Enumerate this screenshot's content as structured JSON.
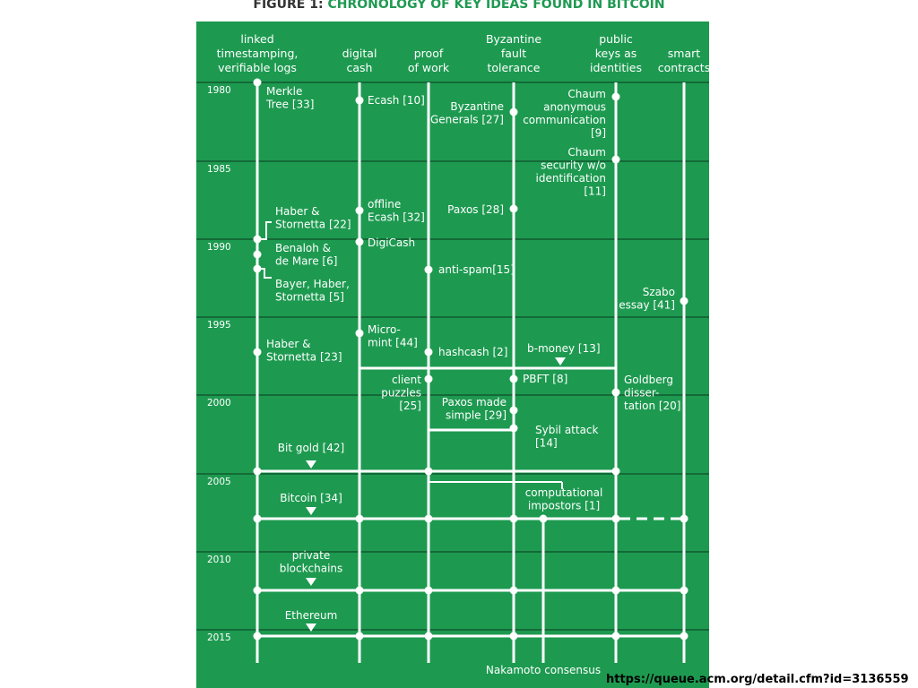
{
  "title": {
    "prefix": "FIGURE 1:",
    "text": "CHRONOLOGY OF KEY IDEAS FOUND IN BITCOIN"
  },
  "colors": {
    "panel": "#1d9a50",
    "line": "#ffffff",
    "title_accent": "#1f9a52"
  },
  "columns": [
    {
      "id": "ts",
      "lines": [
        "linked",
        "timestamping,",
        "verifiable logs"
      ]
    },
    {
      "id": "dc",
      "lines": [
        "digital",
        "cash"
      ]
    },
    {
      "id": "pow",
      "lines": [
        "proof",
        "of work"
      ]
    },
    {
      "id": "bft",
      "lines": [
        "Byzantine",
        "fault",
        "tolerance"
      ]
    },
    {
      "id": "pk",
      "lines": [
        "public",
        "keys as",
        "identities"
      ]
    },
    {
      "id": "sc",
      "lines": [
        "smart",
        "contracts"
      ]
    }
  ],
  "years": [
    "1980",
    "1985",
    "1990",
    "1995",
    "2000",
    "2005",
    "2010",
    "2015"
  ],
  "ideas": [
    {
      "id": "merkle",
      "lines": [
        "Merkle",
        "Tree [33]"
      ]
    },
    {
      "id": "ecash",
      "lines": [
        "Ecash [10]"
      ]
    },
    {
      "id": "byzgen",
      "lines": [
        "Byzantine",
        "Generals [27]"
      ]
    },
    {
      "id": "chaum1",
      "lines": [
        "Chaum",
        "anonymous",
        "communication",
        "[9]"
      ]
    },
    {
      "id": "chaum2",
      "lines": [
        "Chaum",
        "security w/o",
        "identification",
        "[11]"
      ]
    },
    {
      "id": "haber22",
      "lines": [
        "Haber &",
        "Stornetta [22]"
      ]
    },
    {
      "id": "offline",
      "lines": [
        "offline",
        "Ecash [32]"
      ]
    },
    {
      "id": "paxos",
      "lines": [
        "Paxos [28]"
      ]
    },
    {
      "id": "digicash",
      "lines": [
        "DigiCash"
      ]
    },
    {
      "id": "benaloh",
      "lines": [
        "Benaloh &",
        "de Mare [6]"
      ]
    },
    {
      "id": "antispam",
      "lines": [
        "anti-spam[15]"
      ]
    },
    {
      "id": "bayer",
      "lines": [
        "Bayer, Haber,",
        "Stornetta [5]"
      ]
    },
    {
      "id": "szabo",
      "lines": [
        "Szabo",
        "essay [41]"
      ]
    },
    {
      "id": "micromint",
      "lines": [
        "Micro-",
        "mint [44]"
      ]
    },
    {
      "id": "haber23",
      "lines": [
        "Haber &",
        "Stornetta [23]"
      ]
    },
    {
      "id": "hashcash",
      "lines": [
        "hashcash [2]"
      ]
    },
    {
      "id": "bmoney",
      "lines": [
        "b-money [13]"
      ]
    },
    {
      "id": "client",
      "lines": [
        "client",
        "puzzles",
        "[25]"
      ]
    },
    {
      "id": "pbft",
      "lines": [
        "PBFT [8]"
      ]
    },
    {
      "id": "goldberg",
      "lines": [
        "Goldberg",
        "disser-",
        "tation [20]"
      ]
    },
    {
      "id": "paxossimp",
      "lines": [
        "Paxos made",
        "simple [29]"
      ]
    },
    {
      "id": "sybil",
      "lines": [
        "Sybil attack",
        "[14]"
      ]
    },
    {
      "id": "bitgold",
      "lines": [
        "Bit gold [42]"
      ]
    },
    {
      "id": "compimp",
      "lines": [
        "computational",
        "impostors [1]"
      ]
    },
    {
      "id": "bitcoin",
      "lines": [
        "Bitcoin [34]"
      ]
    },
    {
      "id": "private",
      "lines": [
        "private",
        "blockchains"
      ]
    },
    {
      "id": "ethereum",
      "lines": [
        "Ethereum"
      ]
    },
    {
      "id": "nakamoto",
      "lines": [
        "Nakamoto consensus"
      ]
    }
  ],
  "source_url": "https://queue.acm.org/detail.cfm?id=3136559"
}
